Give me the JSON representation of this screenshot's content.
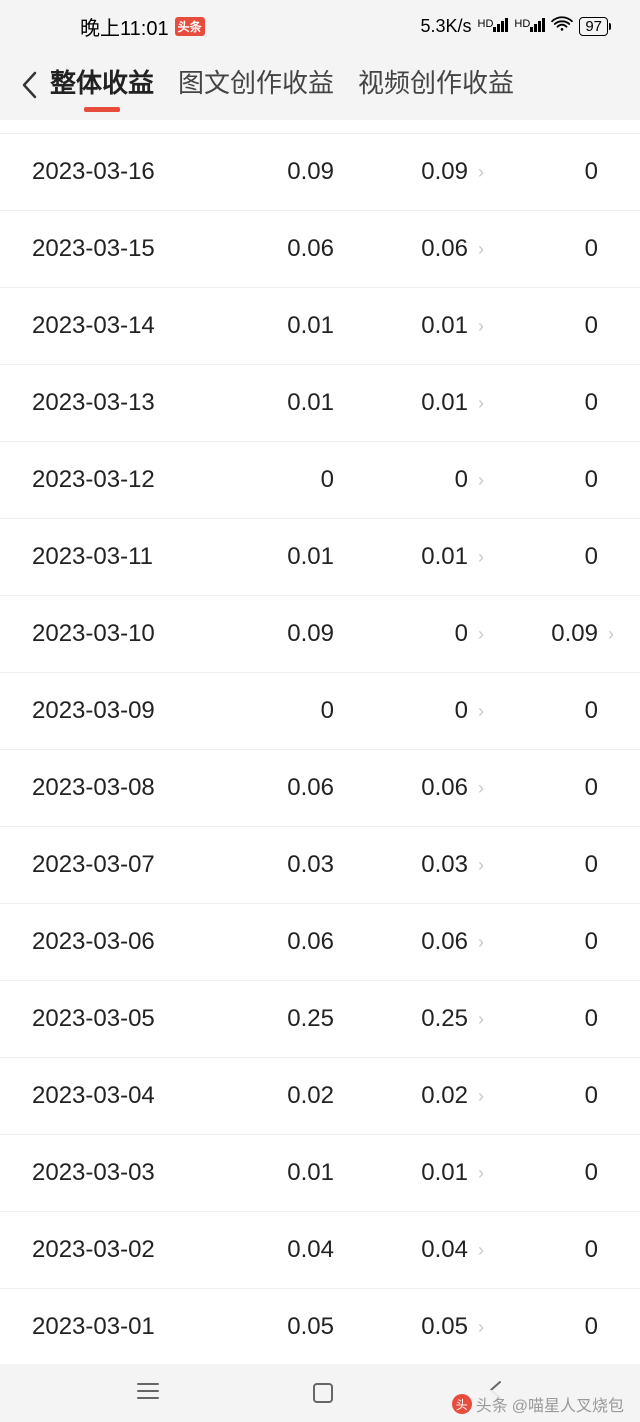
{
  "status_bar": {
    "time": "晚上11:01",
    "badge": "头条",
    "speed": "5.3K/s",
    "battery": "97"
  },
  "tabs": {
    "active_index": 0,
    "items": [
      {
        "label": "整体收益"
      },
      {
        "label": "图文创作收益"
      },
      {
        "label": "视频创作收益"
      }
    ]
  },
  "earnings_table": {
    "columns": [
      "date",
      "total",
      "article",
      "video"
    ],
    "rows": [
      {
        "date": "2023-03-16",
        "total": "0.09",
        "article": "0.09",
        "article_chevron": true,
        "video": "0",
        "video_chevron": false
      },
      {
        "date": "2023-03-15",
        "total": "0.06",
        "article": "0.06",
        "article_chevron": true,
        "video": "0",
        "video_chevron": false
      },
      {
        "date": "2023-03-14",
        "total": "0.01",
        "article": "0.01",
        "article_chevron": true,
        "video": "0",
        "video_chevron": false
      },
      {
        "date": "2023-03-13",
        "total": "0.01",
        "article": "0.01",
        "article_chevron": true,
        "video": "0",
        "video_chevron": false
      },
      {
        "date": "2023-03-12",
        "total": "0",
        "article": "0",
        "article_chevron": true,
        "video": "0",
        "video_chevron": false
      },
      {
        "date": "2023-03-11",
        "total": "0.01",
        "article": "0.01",
        "article_chevron": true,
        "video": "0",
        "video_chevron": false
      },
      {
        "date": "2023-03-10",
        "total": "0.09",
        "article": "0",
        "article_chevron": true,
        "video": "0.09",
        "video_chevron": true
      },
      {
        "date": "2023-03-09",
        "total": "0",
        "article": "0",
        "article_chevron": true,
        "video": "0",
        "video_chevron": false
      },
      {
        "date": "2023-03-08",
        "total": "0.06",
        "article": "0.06",
        "article_chevron": true,
        "video": "0",
        "video_chevron": false
      },
      {
        "date": "2023-03-07",
        "total": "0.03",
        "article": "0.03",
        "article_chevron": true,
        "video": "0",
        "video_chevron": false
      },
      {
        "date": "2023-03-06",
        "total": "0.06",
        "article": "0.06",
        "article_chevron": true,
        "video": "0",
        "video_chevron": false
      },
      {
        "date": "2023-03-05",
        "total": "0.25",
        "article": "0.25",
        "article_chevron": true,
        "video": "0",
        "video_chevron": false
      },
      {
        "date": "2023-03-04",
        "total": "0.02",
        "article": "0.02",
        "article_chevron": true,
        "video": "0",
        "video_chevron": false
      },
      {
        "date": "2023-03-03",
        "total": "0.01",
        "article": "0.01",
        "article_chevron": true,
        "video": "0",
        "video_chevron": false
      },
      {
        "date": "2023-03-02",
        "total": "0.04",
        "article": "0.04",
        "article_chevron": true,
        "video": "0",
        "video_chevron": false
      },
      {
        "date": "2023-03-01",
        "total": "0.05",
        "article": "0.05",
        "article_chevron": true,
        "video": "0",
        "video_chevron": false
      }
    ]
  },
  "watermark": {
    "prefix": "头条",
    "text": "@喵星人叉烧包"
  },
  "colors": {
    "accent": "#e74c3c",
    "text": "#222222",
    "divider": "#f0f0f0",
    "chevron": "#c8c8c8",
    "bg": "#f4f4f4"
  }
}
